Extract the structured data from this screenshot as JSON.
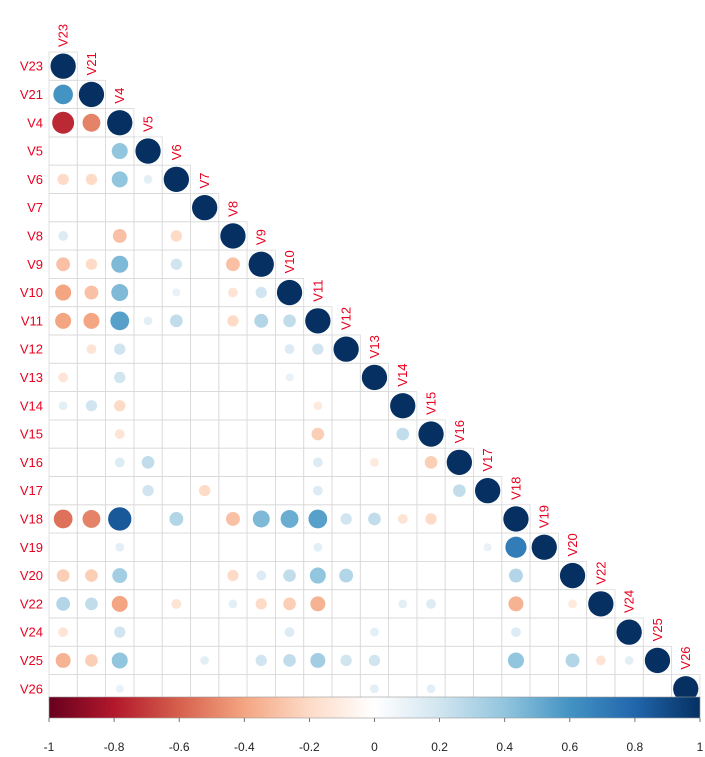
{
  "chart_data": {
    "type": "heatmap",
    "style": "lower-triangle correlation matrix, circle size and color encode correlation",
    "variables": [
      "V23",
      "V21",
      "V4",
      "V5",
      "V6",
      "V7",
      "V8",
      "V9",
      "V10",
      "V11",
      "V12",
      "V13",
      "V14",
      "V15",
      "V16",
      "V17",
      "V18",
      "V19",
      "V20",
      "V22",
      "V24",
      "V25",
      "V26"
    ],
    "correlations": [
      {
        "row": "V21",
        "col": "V23",
        "r": 0.6
      },
      {
        "row": "V4",
        "col": "V23",
        "r": -0.75
      },
      {
        "row": "V4",
        "col": "V21",
        "r": -0.5
      },
      {
        "row": "V5",
        "col": "V4",
        "r": 0.4
      },
      {
        "row": "V6",
        "col": "V23",
        "r": -0.2
      },
      {
        "row": "V6",
        "col": "V21",
        "r": -0.2
      },
      {
        "row": "V6",
        "col": "V4",
        "r": 0.4
      },
      {
        "row": "V6",
        "col": "V5",
        "r": 0.12
      },
      {
        "row": "V8",
        "col": "V23",
        "r": 0.15
      },
      {
        "row": "V8",
        "col": "V4",
        "r": -0.3
      },
      {
        "row": "V8",
        "col": "V6",
        "r": -0.2
      },
      {
        "row": "V9",
        "col": "V23",
        "r": -0.3
      },
      {
        "row": "V9",
        "col": "V21",
        "r": -0.2
      },
      {
        "row": "V9",
        "col": "V4",
        "r": 0.45
      },
      {
        "row": "V9",
        "col": "V6",
        "r": 0.2
      },
      {
        "row": "V9",
        "col": "V8",
        "r": -0.3
      },
      {
        "row": "V10",
        "col": "V23",
        "r": -0.4
      },
      {
        "row": "V10",
        "col": "V21",
        "r": -0.3
      },
      {
        "row": "V10",
        "col": "V4",
        "r": 0.45
      },
      {
        "row": "V10",
        "col": "V6",
        "r": 0.1
      },
      {
        "row": "V10",
        "col": "V8",
        "r": -0.15
      },
      {
        "row": "V10",
        "col": "V9",
        "r": 0.2
      },
      {
        "row": "V11",
        "col": "V23",
        "r": -0.4
      },
      {
        "row": "V11",
        "col": "V21",
        "r": -0.4
      },
      {
        "row": "V11",
        "col": "V4",
        "r": 0.55
      },
      {
        "row": "V11",
        "col": "V5",
        "r": 0.12
      },
      {
        "row": "V11",
        "col": "V6",
        "r": 0.25
      },
      {
        "row": "V11",
        "col": "V8",
        "r": -0.2
      },
      {
        "row": "V11",
        "col": "V9",
        "r": 0.3
      },
      {
        "row": "V11",
        "col": "V10",
        "r": 0.25
      },
      {
        "row": "V12",
        "col": "V21",
        "r": -0.15
      },
      {
        "row": "V12",
        "col": "V4",
        "r": 0.2
      },
      {
        "row": "V12",
        "col": "V10",
        "r": 0.15
      },
      {
        "row": "V12",
        "col": "V11",
        "r": 0.2
      },
      {
        "row": "V13",
        "col": "V23",
        "r": -0.15
      },
      {
        "row": "V13",
        "col": "V4",
        "r": 0.2
      },
      {
        "row": "V13",
        "col": "V10",
        "r": 0.1
      },
      {
        "row": "V14",
        "col": "V23",
        "r": 0.12
      },
      {
        "row": "V14",
        "col": "V21",
        "r": 0.2
      },
      {
        "row": "V14",
        "col": "V4",
        "r": -0.2
      },
      {
        "row": "V14",
        "col": "V11",
        "r": -0.12
      },
      {
        "row": "V15",
        "col": "V4",
        "r": -0.15
      },
      {
        "row": "V15",
        "col": "V11",
        "r": -0.25
      },
      {
        "row": "V15",
        "col": "V14",
        "r": 0.25
      },
      {
        "row": "V16",
        "col": "V4",
        "r": 0.15
      },
      {
        "row": "V16",
        "col": "V5",
        "r": 0.25
      },
      {
        "row": "V16",
        "col": "V11",
        "r": 0.15
      },
      {
        "row": "V16",
        "col": "V13",
        "r": -0.12
      },
      {
        "row": "V16",
        "col": "V15",
        "r": -0.25
      },
      {
        "row": "V17",
        "col": "V5",
        "r": 0.2
      },
      {
        "row": "V17",
        "col": "V7",
        "r": -0.2
      },
      {
        "row": "V17",
        "col": "V11",
        "r": 0.15
      },
      {
        "row": "V17",
        "col": "V16",
        "r": 0.25
      },
      {
        "row": "V18",
        "col": "V23",
        "r": -0.55
      },
      {
        "row": "V18",
        "col": "V21",
        "r": -0.5
      },
      {
        "row": "V18",
        "col": "V4",
        "r": 0.85
      },
      {
        "row": "V18",
        "col": "V6",
        "r": 0.3
      },
      {
        "row": "V18",
        "col": "V8",
        "r": -0.3
      },
      {
        "row": "V18",
        "col": "V9",
        "r": 0.45
      },
      {
        "row": "V18",
        "col": "V10",
        "r": 0.5
      },
      {
        "row": "V18",
        "col": "V11",
        "r": 0.55
      },
      {
        "row": "V18",
        "col": "V12",
        "r": 0.2
      },
      {
        "row": "V18",
        "col": "V13",
        "r": 0.25
      },
      {
        "row": "V18",
        "col": "V14",
        "r": -0.15
      },
      {
        "row": "V18",
        "col": "V15",
        "r": -0.2
      },
      {
        "row": "V19",
        "col": "V4",
        "r": 0.12
      },
      {
        "row": "V19",
        "col": "V11",
        "r": 0.12
      },
      {
        "row": "V19",
        "col": "V17",
        "r": 0.1
      },
      {
        "row": "V19",
        "col": "V18",
        "r": 0.7
      },
      {
        "row": "V20",
        "col": "V23",
        "r": -0.25
      },
      {
        "row": "V20",
        "col": "V21",
        "r": -0.25
      },
      {
        "row": "V20",
        "col": "V4",
        "r": 0.35
      },
      {
        "row": "V20",
        "col": "V8",
        "r": -0.2
      },
      {
        "row": "V20",
        "col": "V9",
        "r": 0.15
      },
      {
        "row": "V20",
        "col": "V10",
        "r": 0.25
      },
      {
        "row": "V20",
        "col": "V11",
        "r": 0.4
      },
      {
        "row": "V20",
        "col": "V12",
        "r": 0.3
      },
      {
        "row": "V20",
        "col": "V18",
        "r": 0.3
      },
      {
        "row": "V22",
        "col": "V23",
        "r": 0.3
      },
      {
        "row": "V22",
        "col": "V21",
        "r": 0.25
      },
      {
        "row": "V22",
        "col": "V4",
        "r": -0.4
      },
      {
        "row": "V22",
        "col": "V6",
        "r": -0.15
      },
      {
        "row": "V22",
        "col": "V8",
        "r": 0.12
      },
      {
        "row": "V22",
        "col": "V9",
        "r": -0.2
      },
      {
        "row": "V22",
        "col": "V10",
        "r": -0.25
      },
      {
        "row": "V22",
        "col": "V11",
        "r": -0.35
      },
      {
        "row": "V22",
        "col": "V14",
        "r": 0.12
      },
      {
        "row": "V22",
        "col": "V15",
        "r": 0.15
      },
      {
        "row": "V22",
        "col": "V18",
        "r": -0.35
      },
      {
        "row": "V22",
        "col": "V20",
        "r": -0.12
      },
      {
        "row": "V24",
        "col": "V23",
        "r": -0.15
      },
      {
        "row": "V24",
        "col": "V4",
        "r": 0.2
      },
      {
        "row": "V24",
        "col": "V10",
        "r": 0.15
      },
      {
        "row": "V24",
        "col": "V13",
        "r": 0.12
      },
      {
        "row": "V24",
        "col": "V18",
        "r": 0.15
      },
      {
        "row": "V25",
        "col": "V23",
        "r": -0.35
      },
      {
        "row": "V25",
        "col": "V21",
        "r": -0.25
      },
      {
        "row": "V25",
        "col": "V4",
        "r": 0.4
      },
      {
        "row": "V25",
        "col": "V7",
        "r": 0.12
      },
      {
        "row": "V25",
        "col": "V9",
        "r": 0.2
      },
      {
        "row": "V25",
        "col": "V10",
        "r": 0.25
      },
      {
        "row": "V25",
        "col": "V11",
        "r": 0.35
      },
      {
        "row": "V25",
        "col": "V12",
        "r": 0.2
      },
      {
        "row": "V25",
        "col": "V13",
        "r": 0.2
      },
      {
        "row": "V25",
        "col": "V18",
        "r": 0.4
      },
      {
        "row": "V25",
        "col": "V20",
        "r": 0.3
      },
      {
        "row": "V25",
        "col": "V22",
        "r": -0.15
      },
      {
        "row": "V25",
        "col": "V24",
        "r": 0.12
      },
      {
        "row": "V26",
        "col": "V4",
        "r": 0.1
      },
      {
        "row": "V26",
        "col": "V13",
        "r": 0.12
      },
      {
        "row": "V26",
        "col": "V15",
        "r": 0.12
      }
    ],
    "colorbar": {
      "range": [
        -1,
        1
      ],
      "ticks": [
        "-1",
        "-0.8",
        "-0.6",
        "-0.4",
        "-0.2",
        "0",
        "0.2",
        "0.4",
        "0.6",
        "0.8",
        "1"
      ],
      "negative_color": "#67001f",
      "mid_color": "#ffffff",
      "positive_color": "#053061"
    },
    "label_color": "#e8001e",
    "grid": true,
    "legend": "bottom"
  }
}
